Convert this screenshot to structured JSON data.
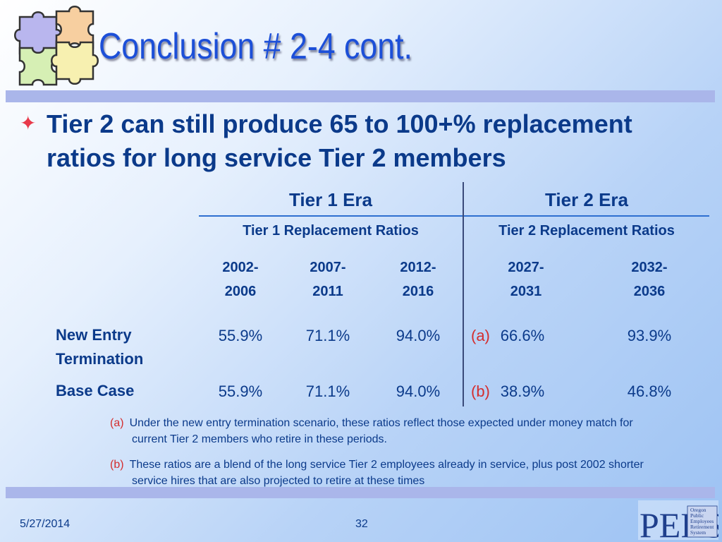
{
  "slide": {
    "title": "Conclusion # 2-4 cont.",
    "bullet": "Tier 2 can still produce 65 to 100+% replacement ratios for long service Tier 2 members"
  },
  "table": {
    "era1": "Tier 1 Era",
    "era2": "Tier 2 Era",
    "sub1": "Tier 1 Replacement Ratios",
    "sub2": "Tier 2 Replacement Ratios",
    "years": [
      {
        "l1": "2002-",
        "l2": "2006"
      },
      {
        "l1": "2007-",
        "l2": "2011"
      },
      {
        "l1": "2012-",
        "l2": "2016"
      },
      {
        "l1": "2027-",
        "l2": "2031"
      },
      {
        "l1": "2032-",
        "l2": "2036"
      }
    ],
    "rows": [
      {
        "label1": "New Entry",
        "label2": "Termination",
        "marker": "(a)",
        "values": [
          "55.9%",
          "71.1%",
          "94.0%",
          "66.6%",
          "93.9%"
        ]
      },
      {
        "label1": "Base Case",
        "label2": "",
        "marker": "(b)",
        "values": [
          "55.9%",
          "71.1%",
          "94.0%",
          "38.9%",
          "46.8%"
        ]
      }
    ]
  },
  "footnotes": [
    {
      "marker": "(a)",
      "line1": "Under the new entry termination scenario, these ratios reflect those expected under money match for",
      "line2": "current Tier 2 members who retire in these periods."
    },
    {
      "marker": "(b)",
      "line1": "These ratios are a blend of the long service Tier 2 employees already in service, plus post 2002 shorter",
      "line2": "service hires that are also projected to retire at these times"
    }
  ],
  "footer": {
    "date": "5/27/2014",
    "page": "32"
  },
  "logo": {
    "letters": "PERS",
    "lines": [
      "Oregon",
      "Public",
      "Employees",
      "Retirement",
      "System"
    ]
  },
  "colors": {
    "title": "#1c4fd8",
    "text": "#0b3a8a",
    "accent": "#d42d2d",
    "rule": "#aab6ea"
  },
  "icons": {
    "puzzle": "puzzle-icon",
    "bullet": "star-icon"
  }
}
